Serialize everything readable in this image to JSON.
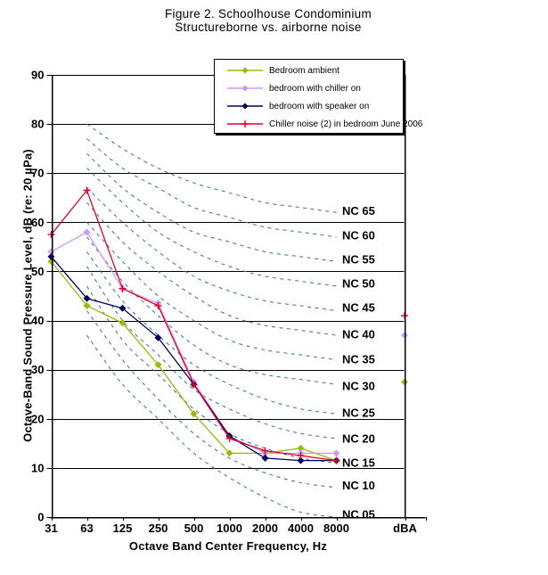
{
  "title": {
    "line1": "Figure 2. Schoolhouse Condominium",
    "line2": "Structureborne vs. airborne noise"
  },
  "chart_data": {
    "type": "line",
    "title": "Figure 2. Schoolhouse Condominium — Structureborne vs. airborne noise",
    "xlabel": "Octave Band Center Frequency, Hz",
    "ylabel": "Octave-Band Sound Pressure Level, dB (re: 20 µPa)",
    "x_categories": [
      "31",
      "63",
      "125",
      "250",
      "500",
      "1000",
      "2000",
      "4000",
      "8000",
      "dBA"
    ],
    "ylim": [
      0,
      90
    ],
    "ytick_step": 10,
    "grid": "horizontal",
    "legend_position": "top-right",
    "series": [
      {
        "name": "Bedroom ambient",
        "color": "#9ab80e",
        "marker": "diamond",
        "values": [
          52,
          43,
          39.5,
          31,
          21,
          13,
          13,
          14,
          11.5
        ],
        "dba": 27.5
      },
      {
        "name": "bedroom with chiller on",
        "color": "#cc99ff",
        "marker": "diamond",
        "values": [
          54,
          58,
          46.5,
          43.5,
          27.5,
          16.5,
          13,
          13,
          13
        ],
        "dba": 37
      },
      {
        "name": "bedroom with speaker on",
        "color": "#000060",
        "marker": "diamond",
        "values": [
          53,
          44.5,
          42.5,
          36.5,
          27,
          16.5,
          12,
          11.5,
          11.5
        ],
        "dba": null
      },
      {
        "name": "Chiller noise (2) in bedroom June 2006",
        "color": "#e00025",
        "marker": "plus",
        "values": [
          57.5,
          66.5,
          46.5,
          43,
          27,
          16,
          13.5,
          12.5,
          11.5
        ],
        "dba": 41
      }
    ],
    "nc_curves": {
      "color": "#35708f",
      "frequencies": [
        63,
        125,
        250,
        500,
        1000,
        2000,
        4000,
        8000
      ],
      "curves": [
        {
          "label": "NC 65",
          "values": [
            80,
            75,
            71,
            68,
            66,
            64,
            63,
            62
          ],
          "label_db": 62.3
        },
        {
          "label": "NC 60",
          "values": [
            77,
            71,
            67,
            63,
            61,
            59,
            58,
            57
          ],
          "label_db": 57.3
        },
        {
          "label": "NC 55",
          "values": [
            74,
            67,
            62,
            58,
            56,
            54,
            53,
            52
          ],
          "label_db": 52.4
        },
        {
          "label": "NC 50",
          "values": [
            71,
            64,
            58,
            54,
            51,
            49,
            48,
            47
          ],
          "label_db": 47.5
        },
        {
          "label": "NC 45",
          "values": [
            67,
            60,
            54,
            49,
            46,
            44,
            43,
            42
          ],
          "label_db": 42.6
        },
        {
          "label": "NC 40",
          "values": [
            64,
            56,
            50,
            45,
            41,
            39,
            38,
            37
          ],
          "label_db": 37.2
        },
        {
          "label": "NC 35",
          "values": [
            60,
            52,
            45,
            40,
            36,
            34,
            33,
            32
          ],
          "label_db": 32.1
        },
        {
          "label": "NC 30",
          "values": [
            57,
            48,
            41,
            35,
            31,
            29,
            28,
            27
          ],
          "label_db": 26.7
        },
        {
          "label": "NC 25",
          "values": [
            54,
            44,
            37,
            31,
            27,
            24,
            22,
            21
          ],
          "label_db": 21.2
        },
        {
          "label": "NC 20",
          "values": [
            51,
            40,
            33,
            26,
            22,
            19,
            17,
            16
          ],
          "label_db": 16.0
        },
        {
          "label": "NC 15",
          "values": [
            47,
            36,
            29,
            22,
            17,
            14,
            12,
            11
          ],
          "label_db": 11.1
        },
        {
          "label": "NC 10",
          "values": [
            42,
            32,
            24,
            17,
            12,
            9,
            7,
            6
          ],
          "label_db": 6.4
        },
        {
          "label": "NC 05",
          "values": [
            37,
            27,
            20,
            13,
            8,
            4,
            1,
            0
          ],
          "label_db": 0.5
        }
      ]
    }
  }
}
